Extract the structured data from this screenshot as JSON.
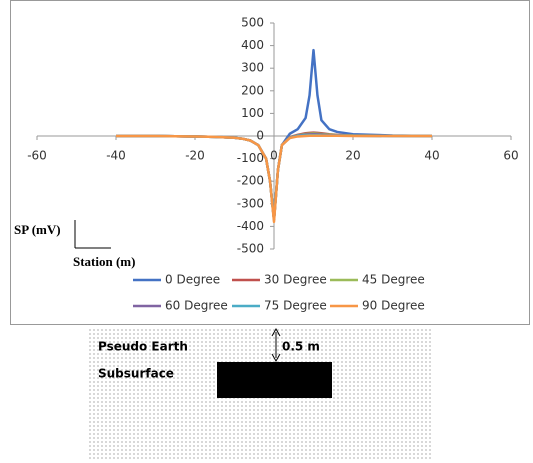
{
  "chart_data": {
    "type": "line",
    "x": [
      -40,
      -30,
      -20,
      -15,
      -10,
      -8,
      -6,
      -4,
      -2,
      -1,
      0,
      1,
      2,
      4,
      6,
      8,
      9,
      10,
      11,
      12,
      14,
      16,
      20,
      30,
      40
    ],
    "series": [
      {
        "name": "0 Degree",
        "color": "#4472c4",
        "values": [
          0,
          0,
          -2,
          -4,
          -8,
          -12,
          -20,
          -40,
          -100,
          -200,
          -370,
          -150,
          -40,
          10,
          30,
          80,
          180,
          380,
          180,
          70,
          30,
          18,
          8,
          2,
          0
        ]
      },
      {
        "name": "30 Degree",
        "color": "#c0504d",
        "values": [
          0,
          0,
          -2,
          -4,
          -8,
          -12,
          -20,
          -40,
          -100,
          -200,
          -370,
          -150,
          -40,
          -5,
          5,
          12,
          14,
          15,
          14,
          12,
          8,
          5,
          2,
          1,
          0
        ]
      },
      {
        "name": "45 Degree",
        "color": "#9bbb59",
        "values": [
          0,
          0,
          -2,
          -4,
          -8,
          -12,
          -20,
          -40,
          -100,
          -200,
          -370,
          -150,
          -40,
          -6,
          3,
          9,
          10,
          11,
          10,
          9,
          6,
          4,
          2,
          1,
          0
        ]
      },
      {
        "name": "60 Degree",
        "color": "#8064a2",
        "values": [
          0,
          0,
          -2,
          -4,
          -8,
          -12,
          -20,
          -40,
          -100,
          -200,
          -370,
          -150,
          -40,
          -7,
          2,
          6,
          7,
          8,
          7,
          6,
          4,
          3,
          1,
          0,
          0
        ]
      },
      {
        "name": "75 Degree",
        "color": "#4bacc6",
        "values": [
          0,
          0,
          -2,
          -4,
          -8,
          -12,
          -20,
          -40,
          -100,
          -200,
          -370,
          -150,
          -40,
          -8,
          1,
          3,
          4,
          4,
          4,
          3,
          2,
          2,
          1,
          0,
          0
        ]
      },
      {
        "name": "90 Degree",
        "color": "#f79646",
        "values": [
          0,
          0,
          -2,
          -4,
          -8,
          -12,
          -20,
          -40,
          -100,
          -200,
          -380,
          -150,
          -40,
          -9,
          -2,
          0,
          1,
          1,
          1,
          1,
          1,
          1,
          0,
          0,
          0
        ]
      }
    ],
    "xlim": [
      -60,
      60
    ],
    "xticks": [
      -60,
      -40,
      -20,
      0,
      20,
      40,
      60
    ],
    "ylim": [
      -500,
      500
    ],
    "yticks": [
      -500,
      -400,
      -300,
      -200,
      -100,
      0,
      100,
      200,
      300,
      400,
      500
    ],
    "y_axis_label": "SP (mV)",
    "x_axis_label": "Station (m)",
    "legend": "bottom"
  },
  "diagram": {
    "medium_label": [
      "Pseudo Earth",
      "Subsurface"
    ],
    "depth_label": "0.5 m"
  }
}
